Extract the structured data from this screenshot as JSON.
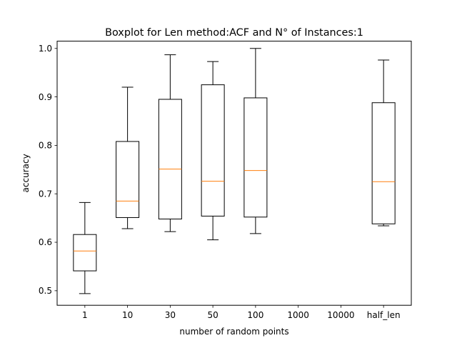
{
  "chart_data": {
    "type": "boxplot",
    "title": "Boxplot for Len method:ACF and N° of Instances:1",
    "xlabel": "number of random points",
    "ylabel": "accuracy",
    "categories": [
      "1",
      "10",
      "30",
      "50",
      "100",
      "1000",
      "10000",
      "half_len"
    ],
    "yticks": [
      "0.5",
      "0.6",
      "0.7",
      "0.8",
      "0.9",
      "1.0"
    ],
    "ylim": [
      0.47,
      1.015
    ],
    "grid": false,
    "boxes": [
      {
        "category": "1",
        "whisker_low": 0.494,
        "q1": 0.541,
        "median": 0.582,
        "q3": 0.616,
        "whisker_high": 0.682
      },
      {
        "category": "10",
        "whisker_low": 0.628,
        "q1": 0.651,
        "median": 0.685,
        "q3": 0.808,
        "whisker_high": 0.92
      },
      {
        "category": "30",
        "whisker_low": 0.622,
        "q1": 0.648,
        "median": 0.751,
        "q3": 0.895,
        "whisker_high": 0.987
      },
      {
        "category": "50",
        "whisker_low": 0.605,
        "q1": 0.654,
        "median": 0.726,
        "q3": 0.925,
        "whisker_high": 0.973
      },
      {
        "category": "100",
        "whisker_low": 0.618,
        "q1": 0.652,
        "median": 0.748,
        "q3": 0.898,
        "whisker_high": 1.0
      },
      {
        "category": "1000"
      },
      {
        "category": "10000"
      },
      {
        "category": "half_len",
        "whisker_low": 0.634,
        "q1": 0.638,
        "median": 0.725,
        "q3": 0.888,
        "whisker_high": 0.976
      }
    ],
    "colors": {
      "box": "#000000",
      "median": "#ff7f0e",
      "axes": "#000000"
    }
  }
}
